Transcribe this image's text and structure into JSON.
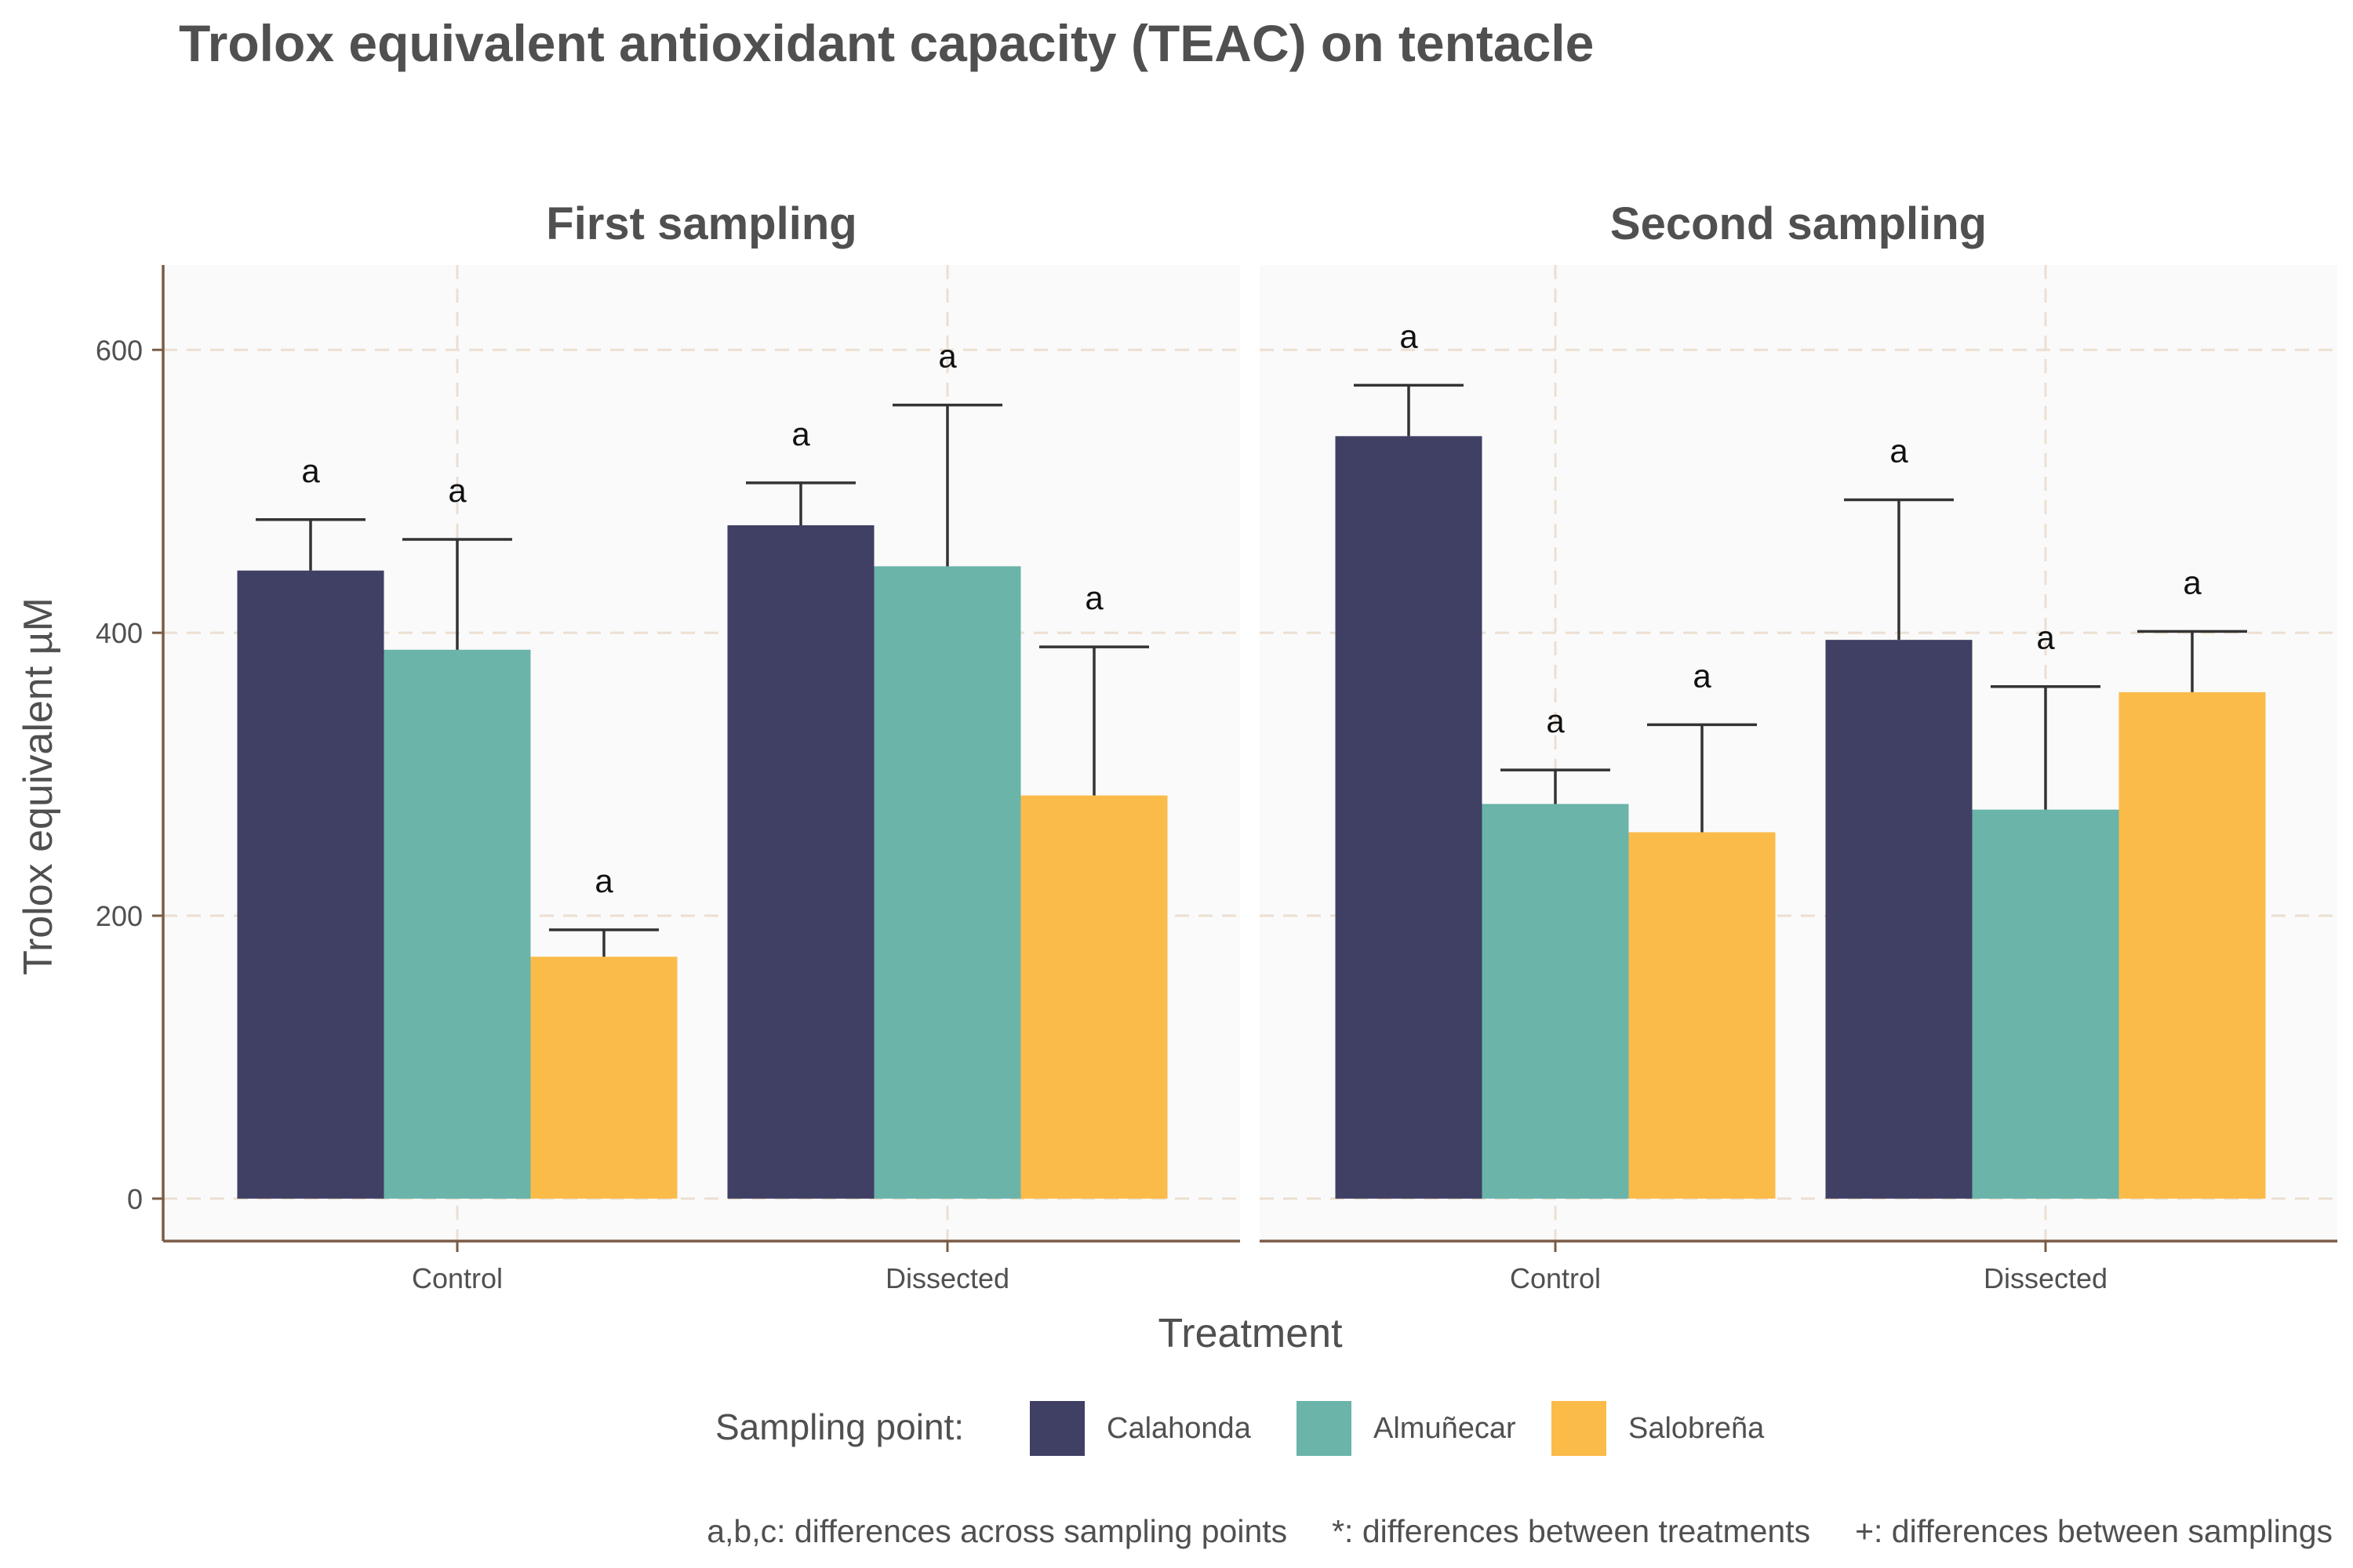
{
  "chart_data": {
    "type": "bar",
    "title": "Trolox equivalent antioxidant capacity (TEAC) on tentacle",
    "xlabel": "Treatment",
    "ylabel": "Trolox equivalent µM",
    "ylim": [
      -30,
      660
    ],
    "yticks": [
      0,
      200,
      400,
      600
    ],
    "grid": true,
    "legend": {
      "title": "Sampling point:",
      "position": "bottom",
      "entries": [
        "Calahonda",
        "Almuñecar",
        "Salobreña"
      ]
    },
    "colors": [
      "#403f64",
      "#6ab4aa",
      "#fbbb49"
    ],
    "caption": "a,b,c: differences across sampling points     *: differences between treatments     +: differences between samplings",
    "categories": [
      "Control",
      "Dissected"
    ],
    "panels": [
      {
        "name": "First sampling",
        "series": [
          {
            "name": "Calahonda",
            "values": [
              444,
              476
            ],
            "error_upper": [
              480,
              506
            ],
            "labels": [
              "a",
              "a"
            ]
          },
          {
            "name": "Almuñecar",
            "values": [
              388,
              447
            ],
            "error_upper": [
              466,
              561
            ],
            "labels": [
              "a",
              "a"
            ]
          },
          {
            "name": "Salobreña",
            "values": [
              171,
              285
            ],
            "error_upper": [
              190,
              390
            ],
            "labels": [
              "a",
              "a"
            ]
          }
        ]
      },
      {
        "name": "Second sampling",
        "series": [
          {
            "name": "Calahonda",
            "values": [
              539,
              395
            ],
            "error_upper": [
              575,
              494
            ],
            "labels": [
              "a",
              "a"
            ]
          },
          {
            "name": "Almuñecar",
            "values": [
              279,
              275
            ],
            "error_upper": [
              303,
              362
            ],
            "labels": [
              "a",
              "a"
            ]
          },
          {
            "name": "Salobreña",
            "values": [
              259,
              358
            ],
            "error_upper": [
              335,
              401
            ],
            "labels": [
              "a",
              "a"
            ]
          }
        ]
      }
    ]
  }
}
